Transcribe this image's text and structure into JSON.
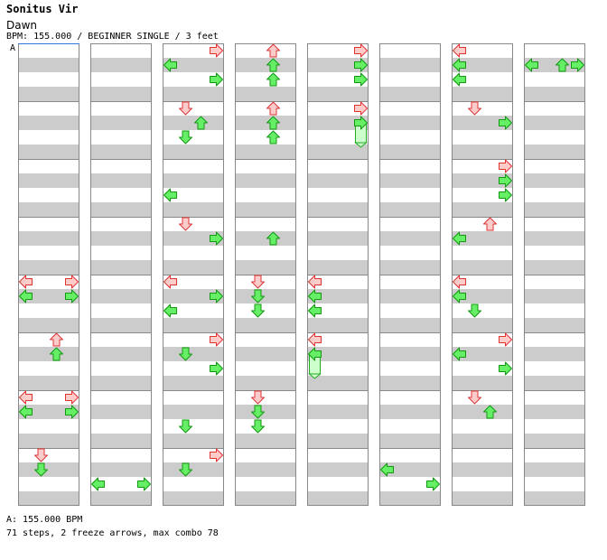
{
  "header": {
    "title": "Sonitus Vir",
    "subtitle": "Dawn",
    "info": "BPM: 155.000 / BEGINNER SINGLE / 3 feet",
    "section_marker": "A"
  },
  "footer": {
    "bpm_line": "A: 155.000 BPM",
    "stats_line": "71 steps, 2 freeze arrows, max combo 78"
  },
  "colors": {
    "stripe": "#cccccc",
    "red_fill": "#ffcccc",
    "red_stroke": "#dd3333",
    "green_fill": "#66ee66",
    "green_stroke": "#119911",
    "freeze_fill": "#ccffcc",
    "freeze_stroke": "#22aa22",
    "border": "#888888",
    "bpm_line": "#3377dd"
  },
  "chart_data": {
    "type": "step-chart",
    "columns": 8,
    "measures_per_column": 8,
    "rows_per_measure": 4,
    "lanes": [
      "left",
      "down",
      "up",
      "right"
    ],
    "notes": [
      {
        "c": 2,
        "m": 0,
        "r": 0,
        "lane": "right",
        "color": "red"
      },
      {
        "c": 2,
        "m": 0,
        "r": 1,
        "lane": "left",
        "color": "green"
      },
      {
        "c": 2,
        "m": 0,
        "r": 2,
        "lane": "right",
        "color": "green"
      },
      {
        "c": 2,
        "m": 1,
        "r": 0,
        "lane": "down",
        "color": "red"
      },
      {
        "c": 2,
        "m": 1,
        "r": 1,
        "lane": "up",
        "color": "green"
      },
      {
        "c": 2,
        "m": 1,
        "r": 2,
        "lane": "down",
        "color": "green"
      },
      {
        "c": 2,
        "m": 2,
        "r": 2,
        "lane": "left",
        "color": "green"
      },
      {
        "c": 2,
        "m": 3,
        "r": 0,
        "lane": "down",
        "color": "red"
      },
      {
        "c": 2,
        "m": 3,
        "r": 1,
        "lane": "right",
        "color": "green"
      },
      {
        "c": 2,
        "m": 4,
        "r": 0,
        "lane": "left",
        "color": "red"
      },
      {
        "c": 2,
        "m": 4,
        "r": 1,
        "lane": "right",
        "color": "green"
      },
      {
        "c": 2,
        "m": 4,
        "r": 2,
        "lane": "left",
        "color": "green"
      },
      {
        "c": 2,
        "m": 5,
        "r": 0,
        "lane": "right",
        "color": "red"
      },
      {
        "c": 2,
        "m": 5,
        "r": 1,
        "lane": "down",
        "color": "green"
      },
      {
        "c": 2,
        "m": 5,
        "r": 2,
        "lane": "right",
        "color": "green"
      },
      {
        "c": 2,
        "m": 6,
        "r": 2,
        "lane": "down",
        "color": "green"
      },
      {
        "c": 2,
        "m": 7,
        "r": 0,
        "lane": "right",
        "color": "red"
      },
      {
        "c": 2,
        "m": 7,
        "r": 1,
        "lane": "down",
        "color": "green"
      },
      {
        "c": 1,
        "m": 7,
        "r": 2,
        "lane": "left",
        "color": "green"
      },
      {
        "c": 1,
        "m": 7,
        "r": 2,
        "lane": "right",
        "color": "green"
      },
      {
        "c": 3,
        "m": 0,
        "r": 0,
        "lane": "up",
        "color": "red"
      },
      {
        "c": 3,
        "m": 0,
        "r": 1,
        "lane": "up",
        "color": "green"
      },
      {
        "c": 3,
        "m": 0,
        "r": 2,
        "lane": "up",
        "color": "green"
      },
      {
        "c": 3,
        "m": 1,
        "r": 0,
        "lane": "up",
        "color": "red"
      },
      {
        "c": 3,
        "m": 1,
        "r": 1,
        "lane": "up",
        "color": "green"
      },
      {
        "c": 3,
        "m": 1,
        "r": 2,
        "lane": "up",
        "color": "green"
      },
      {
        "c": 3,
        "m": 3,
        "r": 1,
        "lane": "up",
        "color": "green"
      },
      {
        "c": 3,
        "m": 4,
        "r": 0,
        "lane": "down",
        "color": "red"
      },
      {
        "c": 3,
        "m": 4,
        "r": 1,
        "lane": "down",
        "color": "green"
      },
      {
        "c": 3,
        "m": 4,
        "r": 2,
        "lane": "down",
        "color": "green"
      },
      {
        "c": 3,
        "m": 6,
        "r": 0,
        "lane": "down",
        "color": "red"
      },
      {
        "c": 3,
        "m": 6,
        "r": 1,
        "lane": "down",
        "color": "green"
      },
      {
        "c": 3,
        "m": 6,
        "r": 2,
        "lane": "down",
        "color": "green"
      },
      {
        "c": 4,
        "m": 0,
        "r": 0,
        "lane": "right",
        "color": "red"
      },
      {
        "c": 4,
        "m": 0,
        "r": 1,
        "lane": "right",
        "color": "green"
      },
      {
        "c": 4,
        "m": 0,
        "r": 2,
        "lane": "right",
        "color": "green"
      },
      {
        "c": 4,
        "m": 1,
        "r": 0,
        "lane": "right",
        "color": "red"
      },
      {
        "c": 4,
        "m": 1,
        "r": 1,
        "lane": "right",
        "color": "green",
        "freeze_rows": 1
      },
      {
        "c": 4,
        "m": 4,
        "r": 0,
        "lane": "left",
        "color": "red"
      },
      {
        "c": 4,
        "m": 4,
        "r": 1,
        "lane": "left",
        "color": "green"
      },
      {
        "c": 4,
        "m": 4,
        "r": 2,
        "lane": "left",
        "color": "green"
      },
      {
        "c": 4,
        "m": 5,
        "r": 0,
        "lane": "left",
        "color": "red"
      },
      {
        "c": 4,
        "m": 5,
        "r": 1,
        "lane": "left",
        "color": "green",
        "freeze_rows": 1
      },
      {
        "c": 5,
        "m": 7,
        "r": 1,
        "lane": "left",
        "color": "green"
      },
      {
        "c": 5,
        "m": 7,
        "r": 2,
        "lane": "right",
        "color": "green"
      },
      {
        "c": 6,
        "m": 0,
        "r": 0,
        "lane": "left",
        "color": "red"
      },
      {
        "c": 6,
        "m": 0,
        "r": 1,
        "lane": "left",
        "color": "green"
      },
      {
        "c": 6,
        "m": 0,
        "r": 2,
        "lane": "left",
        "color": "green"
      },
      {
        "c": 6,
        "m": 1,
        "r": 0,
        "lane": "down",
        "color": "red"
      },
      {
        "c": 6,
        "m": 1,
        "r": 1,
        "lane": "right",
        "color": "green"
      },
      {
        "c": 6,
        "m": 2,
        "r": 0,
        "lane": "right",
        "color": "red"
      },
      {
        "c": 6,
        "m": 2,
        "r": 1,
        "lane": "right",
        "color": "green"
      },
      {
        "c": 6,
        "m": 2,
        "r": 2,
        "lane": "right",
        "color": "green"
      },
      {
        "c": 6,
        "m": 3,
        "r": 0,
        "lane": "up",
        "color": "red"
      },
      {
        "c": 6,
        "m": 3,
        "r": 1,
        "lane": "left",
        "color": "green"
      },
      {
        "c": 6,
        "m": 4,
        "r": 0,
        "lane": "left",
        "color": "red"
      },
      {
        "c": 6,
        "m": 4,
        "r": 1,
        "lane": "left",
        "color": "green"
      },
      {
        "c": 6,
        "m": 4,
        "r": 2,
        "lane": "down",
        "color": "green"
      },
      {
        "c": 6,
        "m": 5,
        "r": 0,
        "lane": "right",
        "color": "red"
      },
      {
        "c": 6,
        "m": 5,
        "r": 1,
        "lane": "left",
        "color": "green"
      },
      {
        "c": 6,
        "m": 5,
        "r": 2,
        "lane": "right",
        "color": "green"
      },
      {
        "c": 6,
        "m": 6,
        "r": 0,
        "lane": "down",
        "color": "red"
      },
      {
        "c": 6,
        "m": 6,
        "r": 1,
        "lane": "up",
        "color": "green"
      },
      {
        "c": 7,
        "m": 0,
        "r": 1,
        "lane": "left",
        "color": "green"
      },
      {
        "c": 7,
        "m": 0,
        "r": 1,
        "lane": "up",
        "color": "green"
      },
      {
        "c": 7,
        "m": 0,
        "r": 1,
        "lane": "right",
        "color": "green"
      },
      {
        "c": 0,
        "m": 4,
        "r": 0,
        "lane": "left",
        "color": "red"
      },
      {
        "c": 0,
        "m": 4,
        "r": 0,
        "lane": "right",
        "color": "red"
      },
      {
        "c": 0,
        "m": 4,
        "r": 1,
        "lane": "left",
        "color": "green"
      },
      {
        "c": 0,
        "m": 4,
        "r": 1,
        "lane": "right",
        "color": "green"
      },
      {
        "c": 0,
        "m": 5,
        "r": 0,
        "lane": "up",
        "color": "red"
      },
      {
        "c": 0,
        "m": 5,
        "r": 1,
        "lane": "up",
        "color": "green"
      },
      {
        "c": 0,
        "m": 6,
        "r": 0,
        "lane": "left",
        "color": "red"
      },
      {
        "c": 0,
        "m": 6,
        "r": 0,
        "lane": "right",
        "color": "red"
      },
      {
        "c": 0,
        "m": 6,
        "r": 1,
        "lane": "left",
        "color": "green"
      },
      {
        "c": 0,
        "m": 6,
        "r": 1,
        "lane": "right",
        "color": "green"
      },
      {
        "c": 0,
        "m": 7,
        "r": 0,
        "lane": "down",
        "color": "red"
      },
      {
        "c": 0,
        "m": 7,
        "r": 1,
        "lane": "down",
        "color": "green"
      }
    ]
  }
}
